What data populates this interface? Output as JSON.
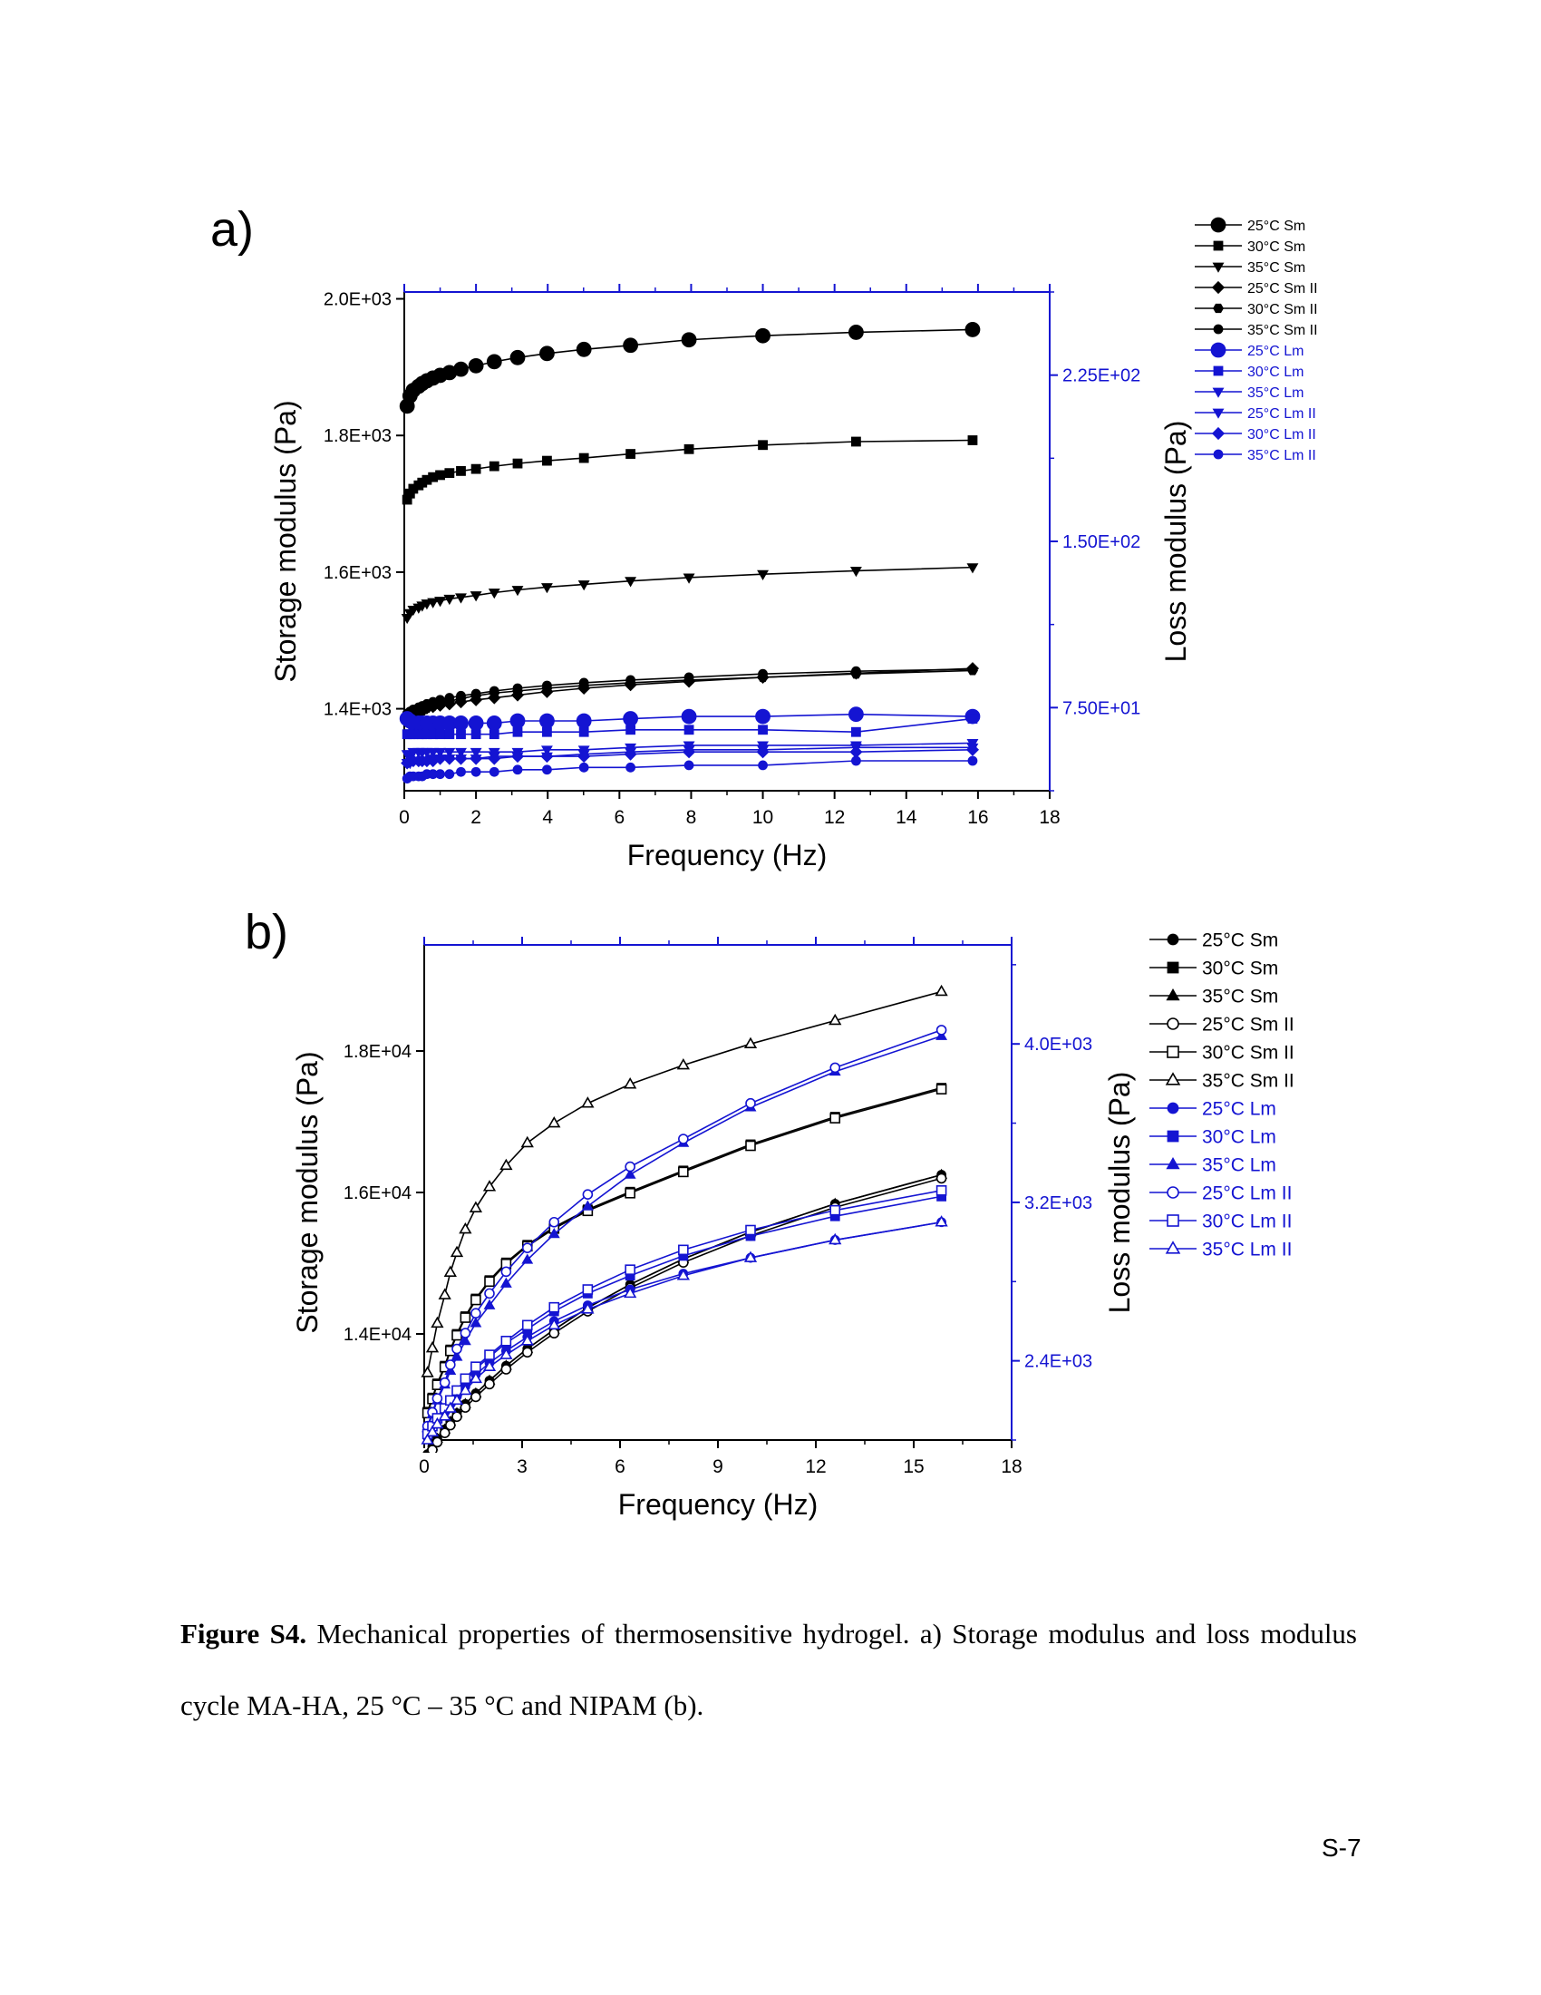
{
  "figure": {
    "label_a": "a)",
    "label_b": "b)"
  },
  "caption": {
    "title": "Figure S4.",
    "text": "Mechanical properties of thermosensitive hydrogel. a) Storage modulus and loss modulus cycle MA-HA, 25 °C – 35 °C and NIPAM (b)."
  },
  "page_number": "S-7",
  "colors": {
    "black": "#000000",
    "blue": "#1414d2"
  },
  "chart_data": [
    {
      "id": "a",
      "type": "line",
      "xlabel": "Frequency (Hz)",
      "ylabel": "Storage modulus (Pa)",
      "y2label": "Loss modulus (Pa)",
      "xlim": [
        0,
        18
      ],
      "ylim": [
        1280,
        2010
      ],
      "y2lim": [
        37.5,
        262.5
      ],
      "xticks": [
        "0",
        "2",
        "4",
        "6",
        "8",
        "10",
        "12",
        "14",
        "16",
        "18"
      ],
      "yticks": [
        "1.4E+03",
        "1.6E+03",
        "1.8E+03",
        "2.0E+03"
      ],
      "y2ticks": [
        "7.50E+01",
        "1.50E+02",
        "2.25E+02"
      ],
      "legend_position": "right",
      "x": [
        0.08,
        0.16,
        0.25,
        0.4,
        0.5,
        0.63,
        0.8,
        1.0,
        1.26,
        1.58,
        2.0,
        2.51,
        3.16,
        3.98,
        5.01,
        6.31,
        7.94,
        10.0,
        12.6,
        15.85
      ],
      "series": [
        {
          "name": "25°C Sm",
          "axis": "left",
          "color": "black",
          "marker": "circle-filled",
          "size": "large",
          "values": [
            1843,
            1858,
            1866,
            1872,
            1876,
            1880,
            1884,
            1888,
            1892,
            1897,
            1902,
            1908,
            1914,
            1920,
            1926,
            1932,
            1940,
            1946,
            1951,
            1955
          ]
        },
        {
          "name": "30°C Sm",
          "axis": "left",
          "color": "black",
          "marker": "square-filled",
          "size": "small",
          "values": [
            1706,
            1715,
            1722,
            1727,
            1731,
            1735,
            1739,
            1742,
            1745,
            1748,
            1751,
            1755,
            1759,
            1763,
            1767,
            1773,
            1780,
            1786,
            1791,
            1793
          ]
        },
        {
          "name": "35°C Sm",
          "axis": "left",
          "color": "black",
          "marker": "triangle-down-filled",
          "size": "small",
          "values": [
            1533,
            1540,
            1545,
            1548,
            1551,
            1554,
            1556,
            1558,
            1561,
            1563,
            1566,
            1570,
            1574,
            1578,
            1582,
            1587,
            1592,
            1597,
            1602,
            1607
          ]
        },
        {
          "name": "25°C Sm II",
          "axis": "left",
          "color": "black",
          "marker": "diamond-filled",
          "size": "small",
          "values": [
            1387,
            1390,
            1393,
            1396,
            1398,
            1401,
            1403,
            1405,
            1407,
            1410,
            1413,
            1416,
            1420,
            1425,
            1430,
            1435,
            1440,
            1446,
            1452,
            1459
          ]
        },
        {
          "name": "30°C Sm II",
          "axis": "left",
          "color": "black",
          "marker": "hexagon-filled",
          "size": "small",
          "values": [
            1384,
            1388,
            1391,
            1394,
            1397,
            1401,
            1404,
            1408,
            1411,
            1415,
            1419,
            1423,
            1426,
            1430,
            1434,
            1438,
            1442,
            1446,
            1451,
            1456
          ]
        },
        {
          "name": "35°C Sm II",
          "axis": "left",
          "color": "black",
          "marker": "circle-filled",
          "size": "small",
          "values": [
            1393,
            1396,
            1399,
            1402,
            1404,
            1407,
            1410,
            1413,
            1416,
            1419,
            1422,
            1426,
            1430,
            1434,
            1438,
            1442,
            1446,
            1451,
            1455,
            1458
          ]
        },
        {
          "name": "25°C Lm",
          "axis": "right",
          "color": "blue",
          "marker": "circle-filled",
          "size": "large",
          "values": [
            70,
            69,
            68,
            68,
            68,
            68,
            68,
            68,
            68,
            68,
            68,
            68,
            69,
            69,
            69,
            70,
            71,
            71,
            72,
            71
          ]
        },
        {
          "name": "30°C Lm",
          "axis": "right",
          "color": "blue",
          "marker": "square-filled",
          "size": "small",
          "values": [
            63,
            63,
            63,
            63,
            63,
            63,
            63,
            63,
            63,
            63,
            63,
            63,
            64,
            64,
            64,
            65,
            65,
            65,
            64,
            70
          ]
        },
        {
          "name": "35°C Lm",
          "axis": "right",
          "color": "blue",
          "marker": "triangle-down-filled",
          "size": "small",
          "values": [
            54,
            54,
            55,
            55,
            55,
            55,
            55,
            55,
            55,
            55,
            55,
            55,
            55,
            56,
            56,
            57,
            58,
            58,
            58,
            59
          ]
        },
        {
          "name": "25°C Lm II",
          "axis": "right",
          "color": "blue",
          "marker": "triangle-down-filled",
          "size": "small",
          "values": [
            50,
            50,
            51,
            51,
            51,
            51,
            52,
            52,
            52,
            52,
            52,
            53,
            53,
            53,
            54,
            55,
            56,
            56,
            57,
            57
          ]
        },
        {
          "name": "30°C Lm II",
          "axis": "right",
          "color": "blue",
          "marker": "diamond-filled",
          "size": "small",
          "values": [
            50,
            51,
            51,
            51,
            51,
            51,
            51,
            52,
            52,
            52,
            52,
            52,
            53,
            53,
            53,
            54,
            55,
            55,
            55,
            56
          ]
        },
        {
          "name": "35°C Lm II",
          "axis": "right",
          "color": "blue",
          "marker": "circle-filled",
          "size": "small",
          "values": [
            43,
            44,
            44,
            44,
            44,
            45,
            45,
            45,
            45,
            46,
            46,
            46,
            47,
            47,
            48,
            48,
            49,
            49,
            51,
            51
          ]
        }
      ]
    },
    {
      "id": "b",
      "type": "line",
      "xlabel": "Frequency (Hz)",
      "ylabel": "Storage modulus (Pa)",
      "y2label": "Loss modulus (Pa)",
      "xlim": [
        0,
        18
      ],
      "ylim": [
        12500,
        19500
      ],
      "y2lim": [
        2000,
        4500
      ],
      "xticks": [
        "0",
        "3",
        "6",
        "9",
        "12",
        "15",
        "18"
      ],
      "yticks": [
        "1.4E+04",
        "1.6E+04",
        "1.8E+04"
      ],
      "y2ticks": [
        "2.4E+03",
        "3.2E+03",
        "4.0E+03"
      ],
      "legend_position": "right",
      "x": [
        0.1,
        0.25,
        0.4,
        0.63,
        0.8,
        1.0,
        1.26,
        1.58,
        2.0,
        2.51,
        3.16,
        3.98,
        5.01,
        6.31,
        7.94,
        10.0,
        12.59,
        15.85
      ],
      "series": [
        {
          "name": "25°C Sm",
          "axis": "left",
          "color": "black",
          "marker": "circle-filled",
          "values": [
            12300,
            12410,
            12520,
            12650,
            12760,
            12880,
            13010,
            13160,
            13340,
            13550,
            13790,
            14060,
            14370,
            14700,
            15060,
            15440,
            15840,
            16250
          ]
        },
        {
          "name": "30°C Sm",
          "axis": "left",
          "color": "black",
          "marker": "square-filled",
          "values": [
            12900,
            13100,
            13300,
            13550,
            13780,
            14000,
            14250,
            14500,
            14760,
            15010,
            15260,
            15510,
            15760,
            16010,
            16310,
            16680,
            17070,
            17480
          ]
        },
        {
          "name": "35°C Sm",
          "axis": "left",
          "color": "black",
          "marker": "triangle-filled",
          "values": [
            12300,
            12410,
            12520,
            12650,
            12760,
            12880,
            13010,
            13160,
            13340,
            13550,
            13790,
            14060,
            14370,
            14700,
            15060,
            15440,
            15840,
            16250
          ]
        },
        {
          "name": "25°C Sm II",
          "axis": "left",
          "color": "black",
          "marker": "circle-open",
          "values": [
            12250,
            12360,
            12470,
            12600,
            12710,
            12830,
            12960,
            13110,
            13290,
            13500,
            13740,
            14010,
            14320,
            14650,
            15010,
            15390,
            15790,
            16200
          ]
        },
        {
          "name": "30°C Sm II",
          "axis": "left",
          "color": "black",
          "marker": "square-open",
          "values": [
            12880,
            13080,
            13280,
            13530,
            13760,
            13980,
            14230,
            14480,
            14740,
            14990,
            15240,
            15490,
            15740,
            15990,
            16290,
            16660,
            17050,
            17460
          ]
        },
        {
          "name": "35°C Sm II",
          "axis": "left",
          "color": "black",
          "marker": "triangle-open",
          "values": [
            13450,
            13800,
            14150,
            14550,
            14870,
            15150,
            15480,
            15780,
            16080,
            16380,
            16700,
            16980,
            17260,
            17530,
            17800,
            18100,
            18430,
            18840
          ]
        },
        {
          "name": "25°C Lm",
          "axis": "right",
          "color": "blue",
          "marker": "circle-filled",
          "values": [
            2020,
            2060,
            2100,
            2140,
            2180,
            2220,
            2270,
            2330,
            2390,
            2450,
            2520,
            2600,
            2680,
            2760,
            2840,
            2920,
            3010,
            3100
          ]
        },
        {
          "name": "30°C Lm",
          "axis": "right",
          "color": "blue",
          "marker": "square-filled",
          "values": [
            2030,
            2070,
            2110,
            2160,
            2200,
            2240,
            2300,
            2360,
            2420,
            2490,
            2560,
            2650,
            2740,
            2830,
            2930,
            3030,
            3130,
            3230
          ]
        },
        {
          "name": "35°C Lm",
          "axis": "right",
          "color": "blue",
          "marker": "triangle-filled",
          "values": [
            2060,
            2130,
            2200,
            2280,
            2350,
            2420,
            2500,
            2590,
            2680,
            2790,
            2910,
            3040,
            3180,
            3340,
            3500,
            3680,
            3860,
            4040
          ]
        },
        {
          "name": "25°C Lm II",
          "axis": "right",
          "color": "blue",
          "marker": "circle-open",
          "values": [
            2070,
            2140,
            2210,
            2290,
            2380,
            2460,
            2540,
            2640,
            2740,
            2850,
            2970,
            3100,
            3240,
            3380,
            3520,
            3700,
            3880,
            4070
          ]
        },
        {
          "name": "30°C Lm II",
          "axis": "right",
          "color": "blue",
          "marker": "square-open",
          "values": [
            2030,
            2070,
            2110,
            2160,
            2200,
            2250,
            2310,
            2370,
            2430,
            2500,
            2580,
            2670,
            2760,
            2860,
            2960,
            3060,
            3160,
            3260
          ]
        },
        {
          "name": "35°C Lm II",
          "axis": "right",
          "color": "blue",
          "marker": "triangle-open",
          "values": [
            2000,
            2040,
            2080,
            2120,
            2160,
            2200,
            2250,
            2310,
            2370,
            2430,
            2500,
            2580,
            2660,
            2740,
            2830,
            2920,
            3010,
            3100
          ]
        }
      ]
    }
  ]
}
